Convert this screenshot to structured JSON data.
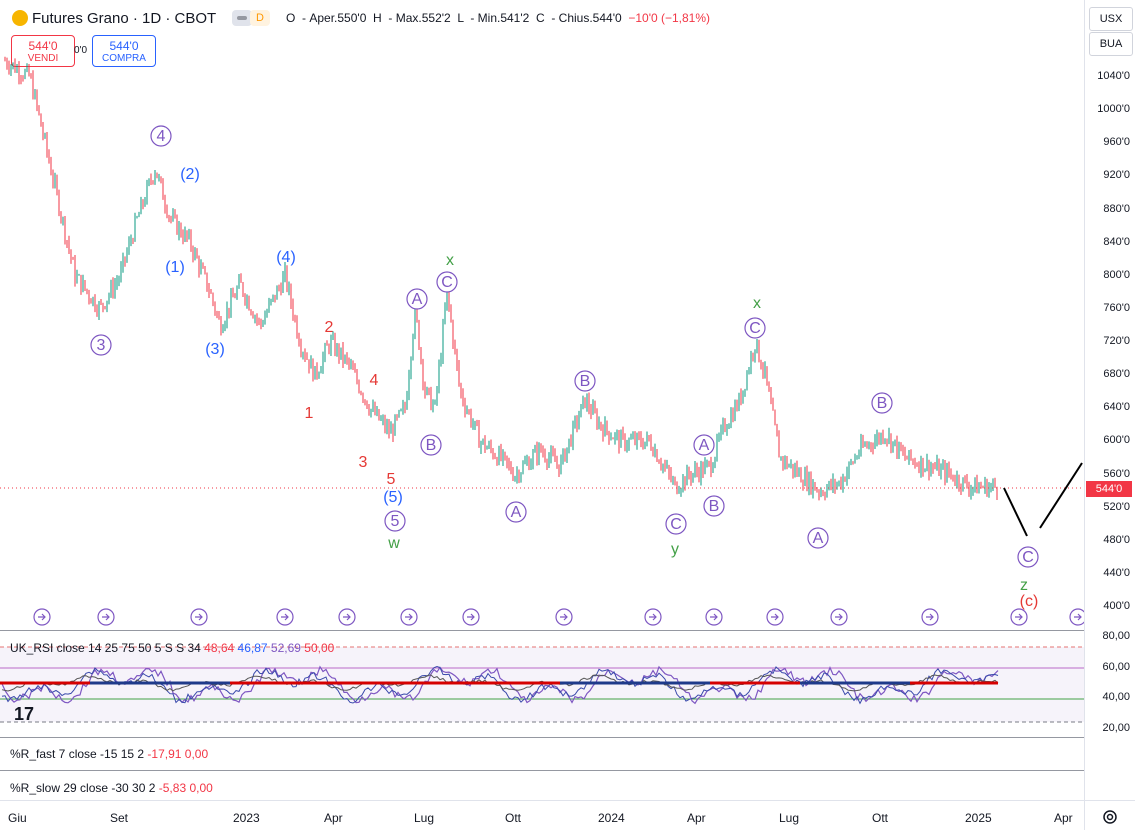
{
  "header": {
    "title": "Futures Grano · 1D · CBOT",
    "badge_d": "D",
    "ohlc": {
      "open_label": "O",
      "open": "Aper.550'0",
      "high_label": "H",
      "high": "Max.552'2",
      "low_label": "L",
      "low": "Min.541'2",
      "close_label": "C",
      "close": "Chius.544'0",
      "change": "−10'0 (−1,81%)"
    },
    "sell": {
      "price": "544'0",
      "label": "VENDI"
    },
    "spread": "0'0",
    "buy": {
      "price": "544'0",
      "label": "COMPRA"
    }
  },
  "axis": {
    "currency": "USX",
    "unit": "BUA",
    "price_ticks": [
      "1040'0",
      "1000'0",
      "960'0",
      "920'0",
      "880'0",
      "840'0",
      "800'0",
      "760'0",
      "720'0",
      "680'0",
      "640'0",
      "600'0",
      "560'0",
      "520'0",
      "480'0",
      "440'0",
      "400'0"
    ],
    "last_price": "544'0",
    "rsi_ticks": [
      "80,00",
      "60,00",
      "40,00",
      "20,00"
    ],
    "time_ticks": [
      "Giu",
      "Set",
      "2023",
      "Apr",
      "Lug",
      "Ott",
      "2024",
      "Apr",
      "Lug",
      "Ott",
      "2025",
      "Apr"
    ]
  },
  "indicators": {
    "rsi": {
      "name": "UK_RSI close 14 25 75 50 5 S S 34",
      "v1": "48,64",
      "v2": "46,87",
      "v3": "52,69",
      "v4": "50,00"
    },
    "rfast": {
      "name": "%R_fast 7 close -15 15 2",
      "v1": "-17,91",
      "v2": "0,00"
    },
    "rslow": {
      "name": "%R_slow 29 close -30 30 2",
      "v1": "-5,83",
      "v2": "0,00"
    }
  },
  "wave_labels": [
    {
      "t": "4",
      "circled": true,
      "c": "#7e57c2"
    },
    {
      "t": "(2)",
      "c": "#2962ff"
    },
    {
      "t": "(1)",
      "c": "#2962ff"
    },
    {
      "t": "3",
      "circled": true,
      "c": "#7e57c2"
    },
    {
      "t": "(3)",
      "c": "#2962ff"
    },
    {
      "t": "(4)",
      "c": "#2962ff"
    },
    {
      "t": "2",
      "c": "#e53935"
    },
    {
      "t": "1",
      "c": "#e53935"
    },
    {
      "t": "4",
      "c": "#e53935"
    },
    {
      "t": "3",
      "c": "#e53935"
    },
    {
      "t": "5",
      "c": "#e53935"
    },
    {
      "t": "(5)",
      "c": "#2962ff"
    },
    {
      "t": "5",
      "circled": true,
      "c": "#7e57c2"
    },
    {
      "t": "w",
      "c": "#43a047"
    },
    {
      "t": "x",
      "c": "#43a047"
    },
    {
      "t": "C",
      "circled": true,
      "c": "#7e57c2"
    },
    {
      "t": "A",
      "circled": true,
      "c": "#7e57c2"
    },
    {
      "t": "B",
      "circled": true,
      "c": "#7e57c2"
    },
    {
      "t": "A",
      "circled": true,
      "c": "#7e57c2"
    },
    {
      "t": "B",
      "circled": true,
      "c": "#7e57c2"
    },
    {
      "t": "C",
      "circled": true,
      "c": "#7e57c2"
    },
    {
      "t": "y",
      "c": "#43a047"
    },
    {
      "t": "A",
      "circled": true,
      "c": "#7e57c2"
    },
    {
      "t": "B",
      "circled": true,
      "c": "#7e57c2"
    },
    {
      "t": "x",
      "c": "#43a047"
    },
    {
      "t": "C",
      "circled": true,
      "c": "#7e57c2"
    },
    {
      "t": "A",
      "circled": true,
      "c": "#7e57c2"
    },
    {
      "t": "B",
      "circled": true,
      "c": "#7e57c2"
    },
    {
      "t": "C",
      "circled": true,
      "c": "#7e57c2"
    },
    {
      "t": "z",
      "c": "#43a047"
    },
    {
      "t": "(c)",
      "c": "#e53935"
    }
  ],
  "colors": {
    "up": "#089981",
    "down": "#f23645",
    "accent": "#2962ff",
    "wave": "#7e57c2"
  }
}
